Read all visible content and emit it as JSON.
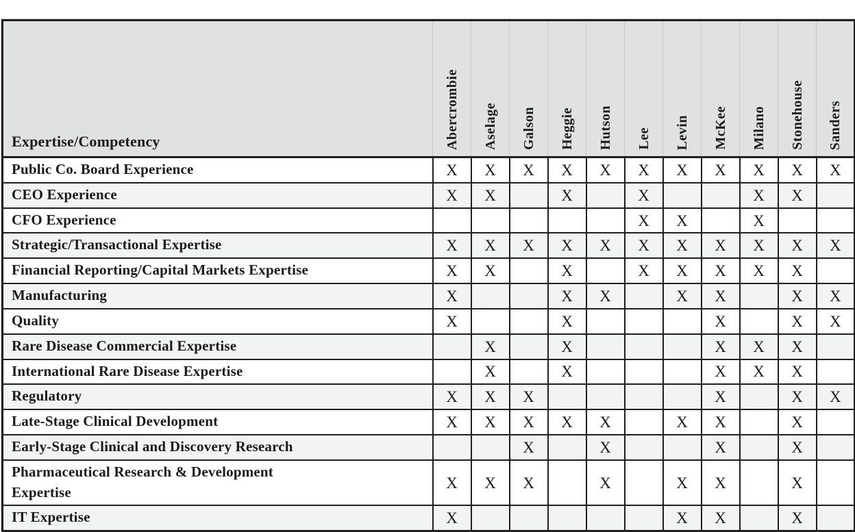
{
  "colors": {
    "border": "#1f1f1f",
    "header_bg": "#e0e1e1",
    "row_bg": "#ffffff",
    "row_alt_bg": "#f2f3f3",
    "text": "#1a1a1a"
  },
  "chart_data": {
    "type": "table",
    "corner_header": "Expertise/Competency",
    "mark_symbol": "X",
    "columns": [
      "Abercrombie",
      "Aselage",
      "Galson",
      "Heggie",
      "Hutson",
      "Lee",
      "Levin",
      "McKee",
      "Milano",
      "Stonehouse",
      "Sanders"
    ],
    "rows": [
      {
        "label": "Public Co. Board Experience",
        "marks": [
          1,
          1,
          1,
          1,
          1,
          1,
          1,
          1,
          1,
          1,
          1
        ]
      },
      {
        "label": "CEO Experience",
        "marks": [
          1,
          1,
          0,
          1,
          0,
          1,
          0,
          0,
          1,
          1,
          0
        ]
      },
      {
        "label": "CFO Experience",
        "marks": [
          0,
          0,
          0,
          0,
          0,
          1,
          1,
          0,
          1,
          0,
          0
        ]
      },
      {
        "label": "Strategic/Transactional Expertise",
        "marks": [
          1,
          1,
          1,
          1,
          1,
          1,
          1,
          1,
          1,
          1,
          1
        ]
      },
      {
        "label": "Financial Reporting/Capital Markets Expertise",
        "marks": [
          1,
          1,
          0,
          1,
          0,
          1,
          1,
          1,
          1,
          1,
          0
        ]
      },
      {
        "label": "Manufacturing",
        "marks": [
          1,
          0,
          0,
          1,
          1,
          0,
          1,
          1,
          0,
          1,
          1
        ]
      },
      {
        "label": "Quality",
        "marks": [
          1,
          0,
          0,
          1,
          0,
          0,
          0,
          1,
          0,
          1,
          1
        ]
      },
      {
        "label": "Rare Disease Commercial Expertise",
        "marks": [
          0,
          1,
          0,
          1,
          0,
          0,
          0,
          1,
          1,
          1,
          0
        ]
      },
      {
        "label": "International Rare Disease Expertise",
        "marks": [
          0,
          1,
          0,
          1,
          0,
          0,
          0,
          1,
          1,
          1,
          0
        ]
      },
      {
        "label": "Regulatory",
        "marks": [
          1,
          1,
          1,
          0,
          0,
          0,
          0,
          1,
          0,
          1,
          1
        ]
      },
      {
        "label": "Late-Stage Clinical Development",
        "marks": [
          1,
          1,
          1,
          1,
          1,
          0,
          1,
          1,
          0,
          1,
          0
        ]
      },
      {
        "label": "Early-Stage Clinical and Discovery Research",
        "marks": [
          0,
          0,
          1,
          0,
          1,
          0,
          0,
          1,
          0,
          1,
          0
        ]
      },
      {
        "label": "Pharmaceutical Research & Development\nExpertise",
        "marks": [
          1,
          1,
          1,
          0,
          1,
          0,
          1,
          1,
          0,
          1,
          0
        ]
      },
      {
        "label": "IT Expertise",
        "marks": [
          1,
          0,
          0,
          0,
          0,
          0,
          1,
          1,
          0,
          1,
          0
        ]
      }
    ]
  }
}
